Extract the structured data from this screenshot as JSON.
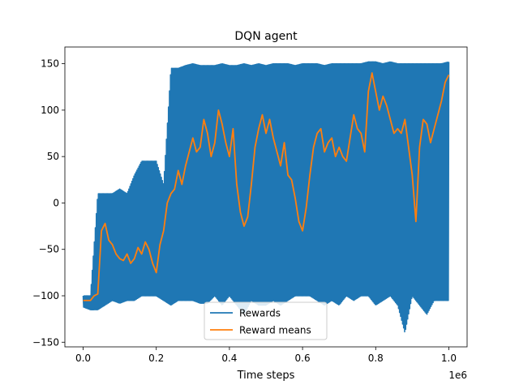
{
  "chart_data": {
    "type": "line",
    "title": "DQN agent",
    "xlabel": "Time steps",
    "ylabel": "",
    "x_offset_label": "1e6",
    "xlim": [
      -0.05,
      1.05
    ],
    "ylim": [
      -155,
      168
    ],
    "x_ticks": [
      0.0,
      0.2,
      0.4,
      0.6,
      0.8,
      1.0
    ],
    "x_tick_labels": [
      "0.0",
      "0.2",
      "0.4",
      "0.6",
      "0.8",
      "1.0"
    ],
    "y_ticks": [
      -150,
      -100,
      -50,
      0,
      50,
      100,
      150
    ],
    "y_tick_labels": [
      "−150",
      "−100",
      "−50",
      "0",
      "50",
      "100",
      "150"
    ],
    "grid": false,
    "legend_position": "lower-center",
    "series": [
      {
        "name": "Rewards",
        "color": "#1f77b4",
        "style": "oscillating",
        "x": [
          0.0,
          0.02,
          0.04,
          0.06,
          0.08,
          0.1,
          0.12,
          0.14,
          0.16,
          0.18,
          0.2,
          0.22,
          0.24,
          0.26,
          0.28,
          0.3,
          0.32,
          0.34,
          0.36,
          0.38,
          0.4,
          0.42,
          0.44,
          0.46,
          0.48,
          0.5,
          0.52,
          0.54,
          0.56,
          0.58,
          0.6,
          0.62,
          0.64,
          0.66,
          0.68,
          0.7,
          0.72,
          0.74,
          0.76,
          0.78,
          0.8,
          0.82,
          0.84,
          0.86,
          0.88,
          0.9,
          0.92,
          0.94,
          0.96,
          0.98,
          1.0
        ],
        "high": [
          -100,
          -100,
          10,
          10,
          10,
          15,
          10,
          30,
          45,
          45,
          45,
          20,
          145,
          145,
          148,
          150,
          148,
          148,
          148,
          150,
          148,
          148,
          150,
          148,
          150,
          148,
          150,
          150,
          150,
          148,
          150,
          150,
          150,
          148,
          150,
          150,
          150,
          150,
          150,
          152,
          152,
          150,
          152,
          150,
          150,
          150,
          150,
          150,
          150,
          150,
          152
        ],
        "low": [
          -112,
          -115,
          -115,
          -110,
          -105,
          -108,
          -105,
          -105,
          -100,
          -100,
          -100,
          -105,
          -110,
          -105,
          -105,
          -105,
          -108,
          -108,
          -100,
          -110,
          -100,
          -110,
          -120,
          -105,
          -110,
          -110,
          -105,
          -110,
          -105,
          -100,
          -100,
          -100,
          -105,
          -110,
          -105,
          -110,
          -100,
          -105,
          -100,
          -100,
          -110,
          -105,
          -100,
          -110,
          -140,
          -100,
          -110,
          -120,
          -105,
          -105,
          -105
        ]
      },
      {
        "name": "Reward means",
        "color": "#ff7f0e",
        "style": "line",
        "x": [
          0.0,
          0.02,
          0.03,
          0.04,
          0.05,
          0.06,
          0.07,
          0.08,
          0.09,
          0.1,
          0.11,
          0.12,
          0.13,
          0.14,
          0.15,
          0.16,
          0.17,
          0.18,
          0.19,
          0.2,
          0.21,
          0.22,
          0.23,
          0.24,
          0.25,
          0.26,
          0.27,
          0.28,
          0.29,
          0.3,
          0.31,
          0.32,
          0.33,
          0.34,
          0.35,
          0.36,
          0.37,
          0.38,
          0.39,
          0.4,
          0.41,
          0.42,
          0.43,
          0.44,
          0.45,
          0.46,
          0.47,
          0.48,
          0.49,
          0.5,
          0.51,
          0.52,
          0.53,
          0.54,
          0.55,
          0.56,
          0.57,
          0.58,
          0.59,
          0.6,
          0.61,
          0.62,
          0.63,
          0.64,
          0.65,
          0.66,
          0.67,
          0.68,
          0.69,
          0.7,
          0.71,
          0.72,
          0.73,
          0.74,
          0.75,
          0.76,
          0.77,
          0.78,
          0.79,
          0.8,
          0.81,
          0.82,
          0.83,
          0.84,
          0.85,
          0.86,
          0.87,
          0.88,
          0.89,
          0.9,
          0.91,
          0.92,
          0.93,
          0.94,
          0.95,
          0.96,
          0.97,
          0.98,
          0.99,
          1.0
        ],
        "y": [
          -105,
          -105,
          -100,
          -98,
          -30,
          -22,
          -40,
          -45,
          -55,
          -60,
          -62,
          -55,
          -65,
          -60,
          -48,
          -55,
          -42,
          -50,
          -65,
          -75,
          -45,
          -30,
          0,
          10,
          15,
          35,
          20,
          40,
          55,
          70,
          55,
          60,
          90,
          75,
          50,
          65,
          100,
          85,
          65,
          50,
          80,
          20,
          -10,
          -25,
          -15,
          20,
          60,
          80,
          95,
          75,
          90,
          70,
          55,
          40,
          65,
          30,
          25,
          5,
          -20,
          -30,
          -5,
          30,
          60,
          75,
          80,
          55,
          65,
          70,
          50,
          60,
          50,
          45,
          70,
          95,
          80,
          75,
          55,
          120,
          140,
          120,
          100,
          115,
          105,
          90,
          75,
          80,
          75,
          90,
          60,
          30,
          -20,
          60,
          90,
          85,
          65,
          80,
          95,
          110,
          130,
          138
        ]
      }
    ]
  }
}
